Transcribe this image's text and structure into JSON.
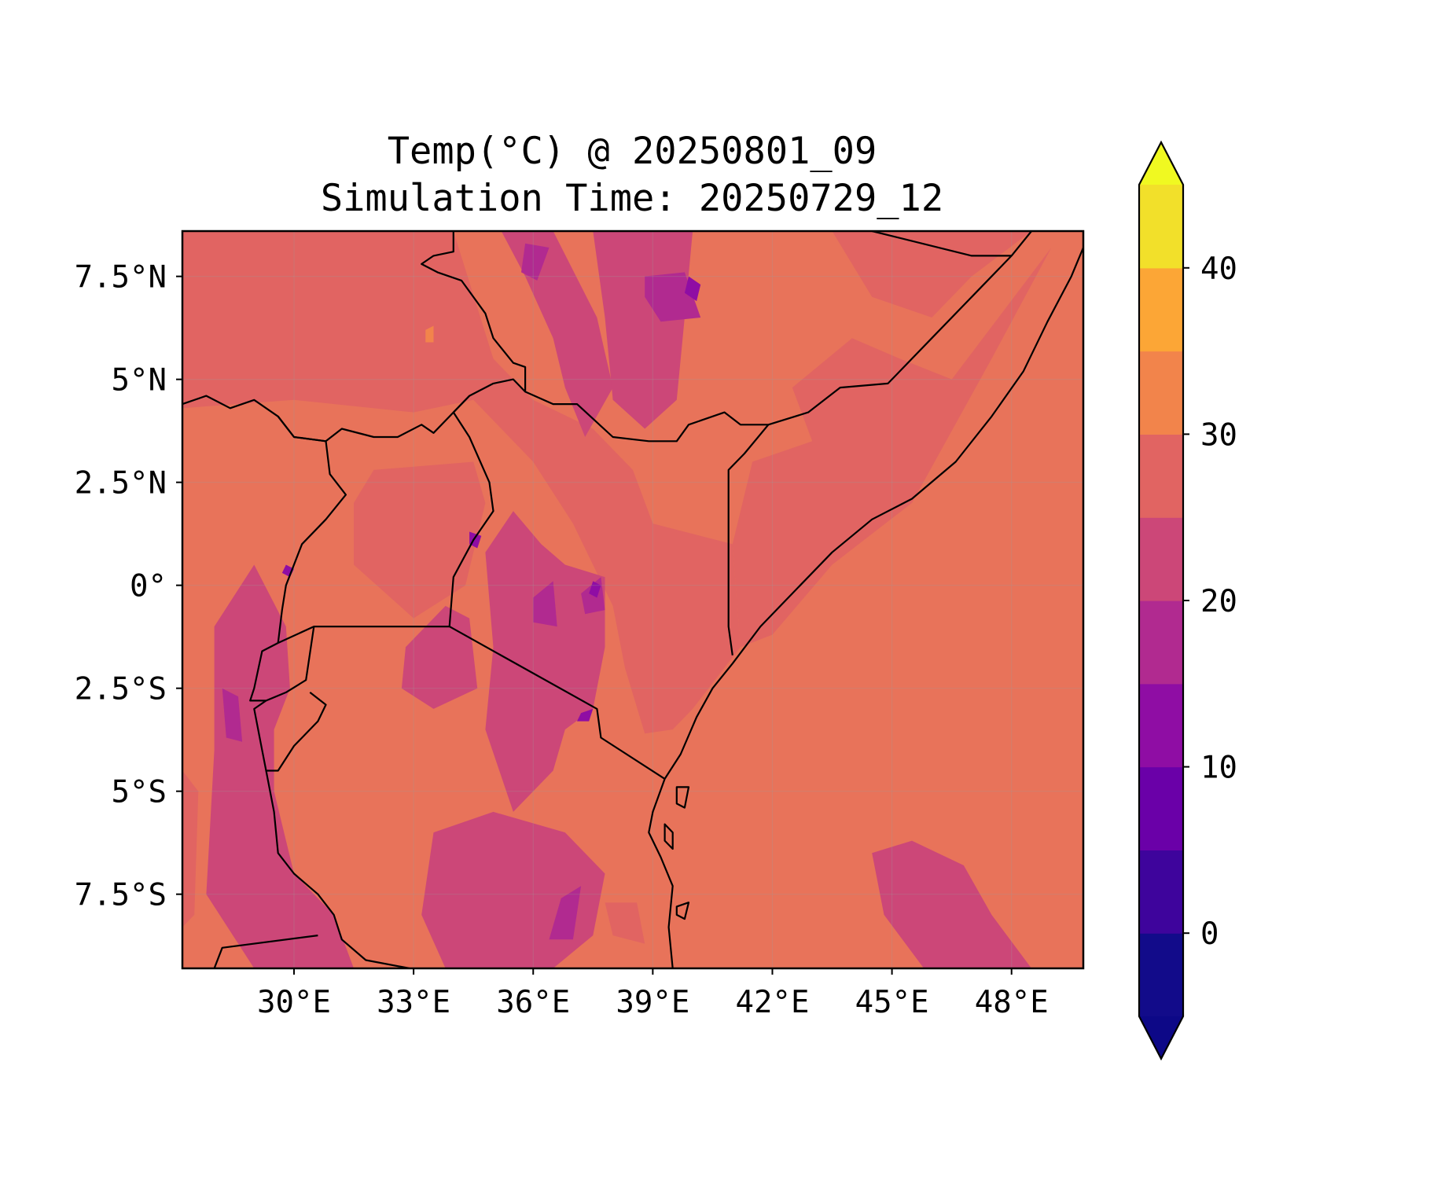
{
  "title_line1": "Temp(°C) @ 20250801_09",
  "title_line2": "Simulation Time: 20250729_12",
  "map": {
    "lon_range": [
      27.2,
      49.8
    ],
    "lat_range": [
      -9.3,
      8.6
    ],
    "lon_ticks": [
      30,
      33,
      36,
      39,
      42,
      45,
      48
    ],
    "lon_tick_labels": [
      "30°E",
      "33°E",
      "36°E",
      "39°E",
      "42°E",
      "45°E",
      "48°E"
    ],
    "lat_ticks": [
      7.5,
      5,
      2.5,
      0,
      -2.5,
      -5,
      -7.5
    ],
    "lat_tick_labels": [
      "7.5°N",
      "5°N",
      "2.5°N",
      "0°",
      "2.5°S",
      "5°S",
      "7.5°S"
    ],
    "background_color": "#e8735a"
  },
  "colorbar": {
    "levels": [
      -5,
      0,
      5,
      10,
      15,
      20,
      25,
      30,
      35,
      40
    ],
    "colors": [
      "#120b8a",
      "#3e049c",
      "#6a00a8",
      "#8f0da4",
      "#b12a90",
      "#cc4778",
      "#e16462",
      "#f2844b",
      "#fca636",
      "#f2e02a"
    ],
    "under_color": "#0d0887",
    "over_color": "#f0f921",
    "extend": "both",
    "tick_values": [
      0,
      10,
      20,
      30,
      40
    ],
    "tick_labels": [
      "0",
      "10",
      "20",
      "30",
      "40"
    ]
  },
  "field_regions": [
    {
      "band": 6,
      "polygon": [
        [
          27.2,
          8.6
        ],
        [
          34.0,
          8.6
        ],
        [
          35.0,
          5.5
        ],
        [
          36.0,
          4.5
        ],
        [
          37.5,
          3.8
        ],
        [
          38.5,
          2.8
        ],
        [
          39.0,
          1.5
        ],
        [
          41.0,
          1.0
        ],
        [
          41.2,
          -1.5
        ],
        [
          40.0,
          -3.0
        ],
        [
          39.5,
          -3.5
        ],
        [
          38.8,
          -3.6
        ],
        [
          38.3,
          -2.0
        ],
        [
          38.0,
          -0.5
        ],
        [
          37.0,
          1.5
        ],
        [
          36.0,
          3.0
        ],
        [
          34.5,
          4.5
        ],
        [
          33.0,
          4.2
        ],
        [
          30.0,
          4.5
        ],
        [
          27.2,
          4.3
        ]
      ]
    },
    {
      "band": 6,
      "polygon": [
        [
          43.5,
          8.6
        ],
        [
          44.5,
          7.0
        ],
        [
          46.0,
          6.5
        ],
        [
          47.0,
          7.5
        ],
        [
          48.5,
          8.6
        ]
      ]
    },
    {
      "band": 6,
      "polygon": [
        [
          42.5,
          4.8
        ],
        [
          44.0,
          6.0
        ],
        [
          45.2,
          5.5
        ],
        [
          46.5,
          5.0
        ],
        [
          49.0,
          8.2
        ],
        [
          47.5,
          5.5
        ],
        [
          45.5,
          2.0
        ],
        [
          43.5,
          0.5
        ],
        [
          42.0,
          -1.2
        ],
        [
          41.2,
          -1.5
        ],
        [
          41.0,
          1.0
        ],
        [
          41.5,
          3.0
        ],
        [
          43.0,
          3.5
        ]
      ]
    },
    {
      "band": 6,
      "polygon": [
        [
          32.0,
          2.8
        ],
        [
          34.5,
          3.0
        ],
        [
          34.8,
          2.0
        ],
        [
          34.3,
          0.0
        ],
        [
          33.0,
          -0.8
        ],
        [
          31.5,
          0.5
        ],
        [
          31.5,
          2.0
        ]
      ]
    },
    {
      "band": 6,
      "polygon": [
        [
          27.2,
          -4.5
        ],
        [
          27.6,
          -5.0
        ],
        [
          27.5,
          -8.0
        ],
        [
          27.2,
          -8.3
        ]
      ]
    },
    {
      "band": 6,
      "polygon": [
        [
          37.8,
          -7.7
        ],
        [
          38.6,
          -7.7
        ],
        [
          38.8,
          -8.7
        ],
        [
          38.0,
          -8.5
        ]
      ]
    },
    {
      "band": 5,
      "polygon": [
        [
          35.2,
          8.6
        ],
        [
          36.5,
          8.6
        ],
        [
          37.6,
          6.5
        ],
        [
          38.0,
          4.8
        ],
        [
          37.3,
          3.6
        ],
        [
          36.8,
          4.8
        ],
        [
          36.5,
          6.0
        ],
        [
          35.8,
          7.5
        ]
      ]
    },
    {
      "band": 5,
      "polygon": [
        [
          37.5,
          8.6
        ],
        [
          40.0,
          8.6
        ],
        [
          39.8,
          6.5
        ],
        [
          39.6,
          4.5
        ],
        [
          38.8,
          3.8
        ],
        [
          38.0,
          4.5
        ],
        [
          37.8,
          6.5
        ]
      ]
    },
    {
      "band": 5,
      "polygon": [
        [
          34.8,
          0.8
        ],
        [
          35.5,
          1.8
        ],
        [
          36.2,
          1.0
        ],
        [
          36.8,
          0.5
        ],
        [
          37.8,
          0.2
        ],
        [
          37.8,
          -1.5
        ],
        [
          37.5,
          -3.0
        ],
        [
          36.8,
          -3.5
        ],
        [
          36.5,
          -4.5
        ],
        [
          35.5,
          -5.5
        ],
        [
          34.8,
          -3.5
        ],
        [
          35.0,
          -1.5
        ]
      ]
    },
    {
      "band": 5,
      "polygon": [
        [
          32.8,
          -1.5
        ],
        [
          33.8,
          -0.5
        ],
        [
          34.4,
          -0.8
        ],
        [
          34.6,
          -2.5
        ],
        [
          33.5,
          -3.0
        ],
        [
          32.7,
          -2.5
        ]
      ]
    },
    {
      "band": 5,
      "polygon": [
        [
          28.0,
          -1.0
        ],
        [
          29.0,
          0.5
        ],
        [
          29.8,
          -1.0
        ],
        [
          29.9,
          -2.5
        ],
        [
          29.5,
          -3.5
        ],
        [
          29.5,
          -5.0
        ],
        [
          30.0,
          -7.0
        ],
        [
          31.0,
          -8.0
        ],
        [
          31.5,
          -9.3
        ],
        [
          29.0,
          -9.3
        ],
        [
          27.8,
          -7.5
        ],
        [
          28.0,
          -4.0
        ]
      ]
    },
    {
      "band": 5,
      "polygon": [
        [
          33.5,
          -6.0
        ],
        [
          35.0,
          -5.5
        ],
        [
          36.8,
          -6.0
        ],
        [
          37.8,
          -7.0
        ],
        [
          37.5,
          -8.5
        ],
        [
          36.5,
          -9.3
        ],
        [
          33.8,
          -9.3
        ],
        [
          33.2,
          -8.0
        ]
      ]
    },
    {
      "band": 5,
      "polygon": [
        [
          44.5,
          -6.5
        ],
        [
          45.5,
          -6.2
        ],
        [
          46.8,
          -6.8
        ],
        [
          47.5,
          -8.0
        ],
        [
          48.5,
          -9.3
        ],
        [
          45.8,
          -9.3
        ],
        [
          44.8,
          -8.0
        ]
      ]
    },
    {
      "band": 4,
      "polygon": [
        [
          38.8,
          7.5
        ],
        [
          39.8,
          7.6
        ],
        [
          40.2,
          6.5
        ],
        [
          39.2,
          6.4
        ],
        [
          38.8,
          7.0
        ]
      ]
    },
    {
      "band": 4,
      "polygon": [
        [
          35.8,
          8.3
        ],
        [
          36.4,
          8.2
        ],
        [
          36.1,
          7.4
        ],
        [
          35.7,
          7.6
        ]
      ]
    },
    {
      "band": 4,
      "polygon": [
        [
          36.0,
          -0.3
        ],
        [
          36.5,
          0.1
        ],
        [
          36.6,
          -1.0
        ],
        [
          36.0,
          -0.9
        ]
      ]
    },
    {
      "band": 4,
      "polygon": [
        [
          37.2,
          -0.2
        ],
        [
          37.7,
          0.2
        ],
        [
          37.8,
          -0.6
        ],
        [
          37.3,
          -0.7
        ]
      ]
    },
    {
      "band": 4,
      "polygon": [
        [
          36.7,
          -7.6
        ],
        [
          37.2,
          -7.3
        ],
        [
          37.0,
          -8.6
        ],
        [
          36.4,
          -8.6
        ]
      ]
    },
    {
      "band": 4,
      "polygon": [
        [
          28.2,
          -2.5
        ],
        [
          28.6,
          -2.7
        ],
        [
          28.7,
          -3.8
        ],
        [
          28.3,
          -3.7
        ]
      ]
    },
    {
      "band": 3,
      "polygon": [
        [
          39.9,
          7.5
        ],
        [
          40.2,
          7.3
        ],
        [
          40.1,
          6.9
        ],
        [
          39.8,
          7.1
        ]
      ]
    },
    {
      "band": 3,
      "polygon": [
        [
          37.5,
          0.1
        ],
        [
          37.7,
          0.0
        ],
        [
          37.6,
          -0.3
        ],
        [
          37.4,
          -0.2
        ]
      ]
    },
    {
      "band": 3,
      "polygon": [
        [
          34.4,
          1.3
        ],
        [
          34.7,
          1.2
        ],
        [
          34.6,
          0.9
        ],
        [
          34.4,
          1.0
        ]
      ]
    },
    {
      "band": 3,
      "polygon": [
        [
          37.2,
          -3.1
        ],
        [
          37.5,
          -3.0
        ],
        [
          37.4,
          -3.3
        ],
        [
          37.1,
          -3.3
        ]
      ]
    },
    {
      "band": 3,
      "polygon": [
        [
          29.8,
          0.5
        ],
        [
          30.0,
          0.4
        ],
        [
          29.9,
          0.2
        ],
        [
          29.7,
          0.3
        ]
      ]
    },
    {
      "band": 7,
      "polygon": [
        [
          33.3,
          6.2
        ],
        [
          33.5,
          6.3
        ],
        [
          33.5,
          5.9
        ],
        [
          33.3,
          5.9
        ]
      ]
    }
  ],
  "country_borders": [
    [
      [
        27.2,
        4.4
      ],
      [
        27.8,
        4.6
      ],
      [
        28.4,
        4.3
      ],
      [
        29.0,
        4.5
      ],
      [
        29.6,
        4.1
      ],
      [
        30.0,
        3.6
      ],
      [
        30.8,
        3.5
      ],
      [
        31.2,
        3.8
      ],
      [
        32.0,
        3.6
      ],
      [
        32.6,
        3.6
      ],
      [
        33.2,
        3.9
      ],
      [
        33.5,
        3.7
      ],
      [
        34.0,
        4.2
      ],
      [
        34.4,
        4.6
      ],
      [
        35.0,
        4.9
      ],
      [
        35.5,
        5.0
      ],
      [
        35.8,
        4.7
      ],
      [
        36.5,
        4.4
      ],
      [
        37.1,
        4.4
      ],
      [
        38.0,
        3.6
      ],
      [
        38.9,
        3.5
      ],
      [
        39.6,
        3.5
      ],
      [
        39.9,
        3.9
      ],
      [
        40.8,
        4.2
      ],
      [
        41.2,
        3.9
      ],
      [
        41.9,
        3.9
      ],
      [
        42.9,
        4.2
      ],
      [
        43.7,
        4.8
      ],
      [
        44.9,
        4.9
      ],
      [
        46.0,
        6.0
      ],
      [
        47.0,
        7.0
      ],
      [
        48.0,
        8.0
      ],
      [
        48.5,
        8.6
      ]
    ],
    [
      [
        34.0,
        8.6
      ],
      [
        34.0,
        8.1
      ],
      [
        33.5,
        8.0
      ],
      [
        33.2,
        7.8
      ],
      [
        33.6,
        7.6
      ],
      [
        34.2,
        7.4
      ],
      [
        34.8,
        6.6
      ],
      [
        35.0,
        6.0
      ],
      [
        35.5,
        5.4
      ],
      [
        35.8,
        5.3
      ],
      [
        35.8,
        4.7
      ]
    ],
    [
      [
        44.5,
        8.6
      ],
      [
        47.0,
        8.0
      ],
      [
        48.0,
        8.0
      ]
    ],
    [
      [
        29.6,
        4.1
      ],
      [
        30.0,
        3.6
      ],
      [
        30.8,
        3.5
      ],
      [
        30.9,
        2.7
      ],
      [
        31.3,
        2.2
      ],
      [
        30.8,
        1.6
      ],
      [
        30.2,
        1.0
      ],
      [
        29.8,
        0.0
      ],
      [
        29.7,
        -0.6
      ],
      [
        29.6,
        -1.4
      ]
    ],
    [
      [
        34.4,
        4.6
      ],
      [
        34.0,
        4.2
      ],
      [
        34.4,
        3.6
      ],
      [
        34.9,
        2.5
      ],
      [
        35.0,
        1.8
      ],
      [
        34.5,
        1.1
      ],
      [
        34.0,
        0.2
      ],
      [
        33.9,
        -1.0
      ]
    ],
    [
      [
        29.6,
        -1.4
      ],
      [
        30.5,
        -1.0
      ],
      [
        33.9,
        -1.0
      ],
      [
        37.6,
        -3.0
      ],
      [
        37.7,
        -3.7
      ],
      [
        39.3,
        -4.7
      ]
    ],
    [
      [
        41.0,
        -1.7
      ],
      [
        40.9,
        -1.0
      ],
      [
        40.9,
        2.8
      ],
      [
        41.3,
        3.2
      ],
      [
        41.9,
        3.9
      ]
    ],
    [
      [
        29.6,
        -1.4
      ],
      [
        29.2,
        -1.6
      ],
      [
        29.0,
        -2.5
      ],
      [
        28.9,
        -2.8
      ],
      [
        29.3,
        -2.8
      ],
      [
        29.8,
        -2.6
      ],
      [
        30.3,
        -2.3
      ],
      [
        30.5,
        -1.0
      ]
    ],
    [
      [
        29.3,
        -2.8
      ],
      [
        29.0,
        -3.0
      ],
      [
        29.2,
        -4.0
      ],
      [
        29.3,
        -4.5
      ],
      [
        29.6,
        -4.5
      ],
      [
        30.0,
        -3.9
      ],
      [
        30.6,
        -3.3
      ],
      [
        30.8,
        -2.9
      ],
      [
        30.4,
        -2.6
      ]
    ],
    [
      [
        28.0,
        -9.3
      ],
      [
        28.2,
        -8.8
      ],
      [
        30.6,
        -8.5
      ]
    ],
    [
      [
        29.3,
        -4.5
      ],
      [
        29.5,
        -5.5
      ],
      [
        29.6,
        -6.5
      ],
      [
        30.0,
        -7.0
      ],
      [
        30.6,
        -7.5
      ],
      [
        31.0,
        -8.0
      ],
      [
        31.2,
        -8.6
      ],
      [
        31.8,
        -9.1
      ],
      [
        32.9,
        -9.3
      ]
    ]
  ],
  "coastline": [
    [
      39.3,
      -4.7
    ],
    [
      39.7,
      -4.1
    ],
    [
      40.1,
      -3.2
    ],
    [
      40.5,
      -2.5
    ],
    [
      41.0,
      -1.9
    ],
    [
      41.7,
      -1.0
    ],
    [
      42.5,
      -0.2
    ],
    [
      43.5,
      0.8
    ],
    [
      44.5,
      1.6
    ],
    [
      45.5,
      2.1
    ],
    [
      46.6,
      3.0
    ],
    [
      47.5,
      4.1
    ],
    [
      48.3,
      5.2
    ],
    [
      48.9,
      6.4
    ],
    [
      49.5,
      7.5
    ],
    [
      49.8,
      8.2
    ]
  ],
  "coastline_south": [
    [
      39.3,
      -4.7
    ],
    [
      39.0,
      -5.5
    ],
    [
      38.9,
      -6.0
    ],
    [
      39.2,
      -6.6
    ],
    [
      39.5,
      -7.3
    ],
    [
      39.4,
      -8.3
    ],
    [
      39.5,
      -9.3
    ]
  ],
  "islands": [
    [
      [
        39.6,
        -4.9
      ],
      [
        39.9,
        -4.9
      ],
      [
        39.8,
        -5.4
      ],
      [
        39.6,
        -5.3
      ]
    ],
    [
      [
        39.3,
        -5.8
      ],
      [
        39.5,
        -6.0
      ],
      [
        39.5,
        -6.4
      ],
      [
        39.3,
        -6.2
      ]
    ],
    [
      [
        39.6,
        -7.8
      ],
      [
        39.9,
        -7.7
      ],
      [
        39.8,
        -8.1
      ],
      [
        39.6,
        -8.0
      ]
    ]
  ]
}
